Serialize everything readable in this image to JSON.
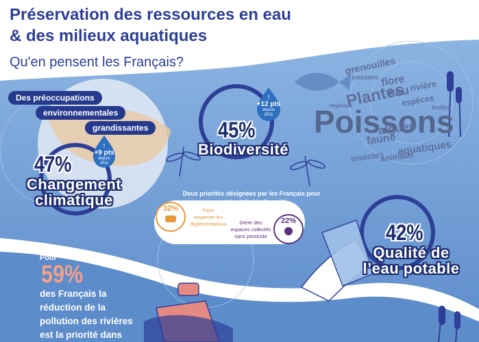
{
  "title_line1": "Préservation des ressources en eau",
  "title_line2": "& des milieux aquatiques",
  "subtitle": "Qu'en pensent les Français?",
  "concerns": {
    "line1": "Des préoccupations",
    "line2": "environnementales",
    "line3": "grandissantes"
  },
  "climate": {
    "percent": "47%",
    "label_line1": "Changement",
    "label_line2": "climatique",
    "arrow": "↑",
    "pts": "+9 pts",
    "since_line1": "depuis",
    "since_line2": "2011"
  },
  "biodiversity": {
    "percent": "45%",
    "label": "Biodiversité",
    "arrow": "↑",
    "pts": "+12 pts",
    "since_line1": "depuis",
    "since_line2": "2011"
  },
  "water": {
    "percent": "42%",
    "label_line1": "Qualité de",
    "label_line2": "l’eau potable"
  },
  "priorities": {
    "title_line1": "Deux priorités désignées par les Français pour",
    "title_line2": "maintenir la biodiversité",
    "item1": {
      "percent": "32%",
      "text_line1": "Faire",
      "text_line2": "respecter les",
      "text_line3": "réglementations"
    },
    "item2": {
      "percent": "22%",
      "text_line1": "Gérer des",
      "text_line2": "espaces collectifs",
      "text_line3": "sans pesticide"
    }
  },
  "pollution": {
    "pre": "Pour",
    "percent": "59%",
    "line1": "des Français la",
    "line2": "réduction de la",
    "line3": "pollution des rivières",
    "line4": "est la priorité dans"
  },
  "word_cloud": {
    "w1": "grenouilles",
    "w2": "poissons",
    "w3": "flore",
    "w4": "eau",
    "w5": "rivière",
    "w6": "espèces",
    "w7": "Plantes",
    "w8": "végétaux",
    "w9": "truites",
    "w10": "Poissons",
    "w11": "algues",
    "w12": "faune",
    "w13": "aquatiques",
    "w14": "animaux",
    "w15": "insectes"
  },
  "colors": {
    "navy": "#1d2c6e",
    "title_blue": "#2d3f96",
    "water_blue": "#6f9bd3",
    "orange": "#e79a3a",
    "purple": "#5b2f7c",
    "salmon": "#f2a18a"
  }
}
